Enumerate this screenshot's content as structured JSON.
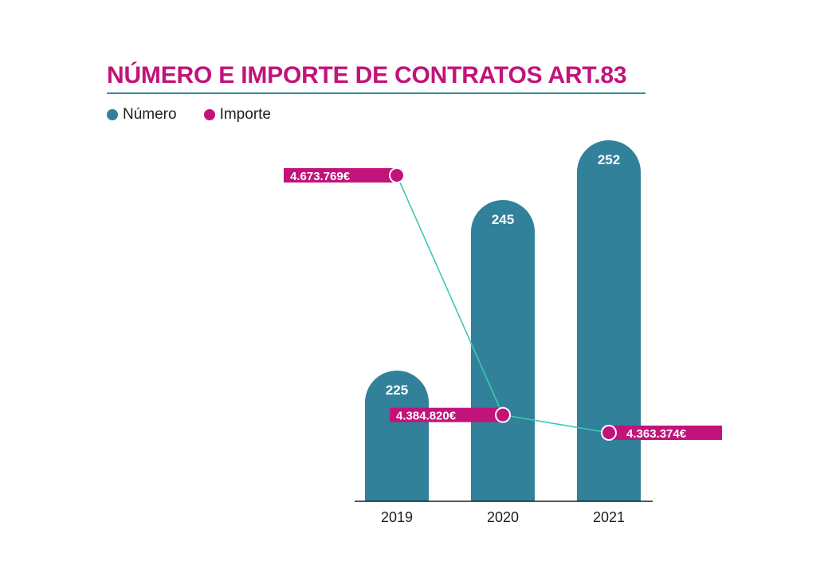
{
  "colors": {
    "title": "#c2137a",
    "rule": "#2f8fa0",
    "bar": "#31819a",
    "line": "#3ec9b4",
    "importe": "#c2137a",
    "axis": "#1e1e1e",
    "bar_label": "#ffffff"
  },
  "chart_data": {
    "type": "bar",
    "title": "NÚMERO E IMPORTE DE CONTRATOS ART.83",
    "categories": [
      "2019",
      "2020",
      "2021"
    ],
    "legend": {
      "position": "top-left"
    },
    "series": [
      {
        "name": "Número",
        "type": "bar",
        "values": [
          225,
          245,
          252
        ],
        "labels": [
          "225",
          "245",
          "252"
        ]
      },
      {
        "name": "Importe",
        "type": "line",
        "values": [
          4673769,
          4384820,
          4363374
        ],
        "labels": [
          "4.673.769€",
          "4.384.820€",
          "4.363.374€"
        ]
      }
    ]
  }
}
